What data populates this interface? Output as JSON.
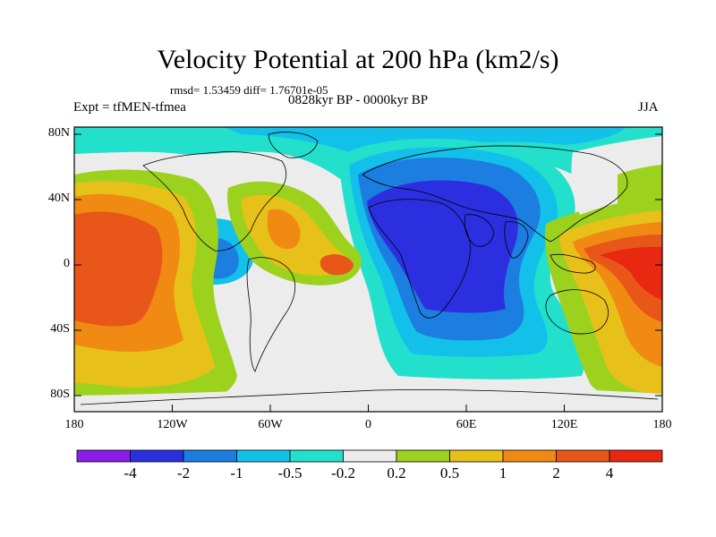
{
  "title": "Velocity Potential at 200 hPa (km2/s)",
  "stats_text": "rmsd= 1.53459 diff= 1.76701e-05",
  "left_label": "Expt = tfMEN-tfmea",
  "center_label": "0828kyr BP - 0000kyr BP",
  "right_label": "JJA",
  "lat_labels": [
    "80N",
    "40N",
    "0",
    "40S",
    "80S"
  ],
  "lon_labels": [
    "180",
    "120W",
    "60W",
    "0",
    "60E",
    "120E",
    "180"
  ],
  "colorbar": {
    "colors": [
      "#8a1ee8",
      "#2b2fe0",
      "#1b7ee0",
      "#13c0ea",
      "#22e0cc",
      "#ececec",
      "#9cd21e",
      "#e8c01a",
      "#f08a12",
      "#e8561a",
      "#e82810"
    ],
    "labels": [
      "-4",
      "-2",
      "-1",
      "-0.5",
      "-0.2",
      "0.2",
      "0.5",
      "1",
      "2",
      "4"
    ]
  },
  "colors": {
    "strong_neg": "#2b2fe0",
    "mid_neg": "#1b7ee0",
    "weak_neg": "#13c0ea",
    "slight_neg": "#22e0cc",
    "neutral": "#ececec",
    "slight_pos": "#9cd21e",
    "weak_pos": "#e8c01a",
    "mid_pos": "#f08a12",
    "strong_pos": "#e8561a",
    "max_pos": "#e82810"
  }
}
